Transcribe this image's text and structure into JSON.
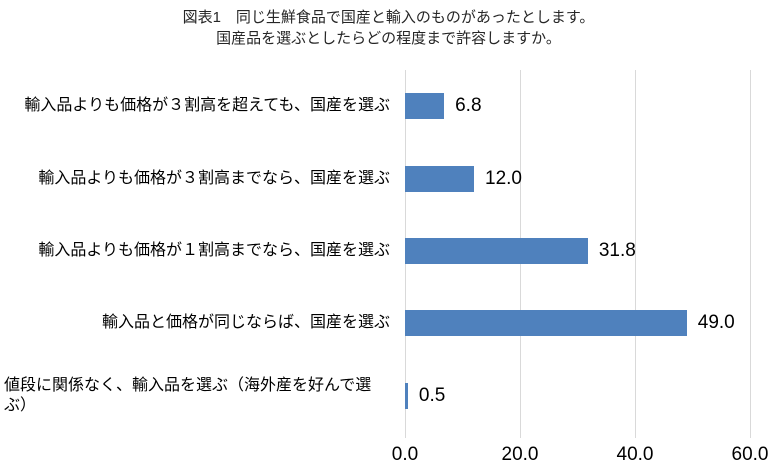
{
  "title": {
    "line1": "図表1　同じ生鮮食品で国産と輸入のものがあったとします。",
    "line2": "国産品を選ぶとしたらどの程度まで許容しますか。"
  },
  "colors": {
    "bar": "#4f81bd",
    "gridline": "#d9d9d9",
    "text": "#000000"
  },
  "chart_data": {
    "type": "bar",
    "orientation": "horizontal",
    "title": "図表1　同じ生鮮食品で国産と輸入のものがあったとします。国産品を選ぶとしたらどの程度まで許容しますか。",
    "categories": [
      "輸入品よりも価格が３割高を超えても、国産を選ぶ",
      "輸入品よりも価格が３割高までなら、国産を選ぶ",
      "輸入品よりも価格が１割高までなら、国産を選ぶ",
      "輸入品と価格が同じならば、国産を選ぶ",
      "値段に関係なく、輸入品を選ぶ（海外産を好んで選ぶ）"
    ],
    "values": [
      6.8,
      12.0,
      31.8,
      49.0,
      0.5
    ],
    "value_labels": [
      "6.8",
      "12.0",
      "31.8",
      "49.0",
      "0.5"
    ],
    "x_ticks": [
      0,
      20,
      40,
      60
    ],
    "x_tick_labels": [
      "0.0",
      "20.0",
      "40.0",
      "60.0"
    ],
    "xlim": [
      0,
      60
    ],
    "xlabel": "",
    "ylabel": "",
    "grid": true,
    "legend": false,
    "bar_color": "#4f81bd"
  }
}
